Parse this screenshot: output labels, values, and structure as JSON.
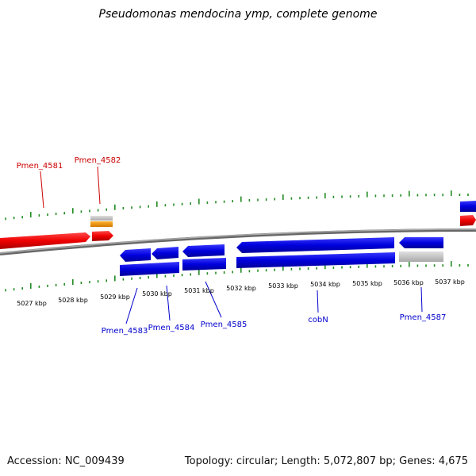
{
  "title": "Pseudomonas mendocina ymp, complete genome",
  "colors": {
    "forward_gene": "#ee0000",
    "reverse_gene": "#0000dd",
    "pseudo_gene": "#c8c8c8",
    "rna_gene": "#f29900",
    "tick": "#228b22",
    "backbone": "#888888"
  },
  "kbp_labels": [
    "5027 kbp",
    "5028 kbp",
    "5029 kbp",
    "5030 kbp",
    "5031 kbp",
    "5032 kbp",
    "5033 kbp",
    "5034 kbp",
    "5035 kbp",
    "5036 kbp",
    "5037 kbp"
  ],
  "gene_labels": {
    "forward": [
      "Pmen_4581",
      "Pmen_4582"
    ],
    "reverse": [
      "Pmen_4583",
      "Pmen_4584",
      "Pmen_4585",
      "cobN",
      "Pmen_4587"
    ]
  },
  "footer": {
    "accession": "Accession: NC_009439",
    "summary": "Topology: circular; Length: 5,072,807 bp; Genes: 4,675"
  }
}
